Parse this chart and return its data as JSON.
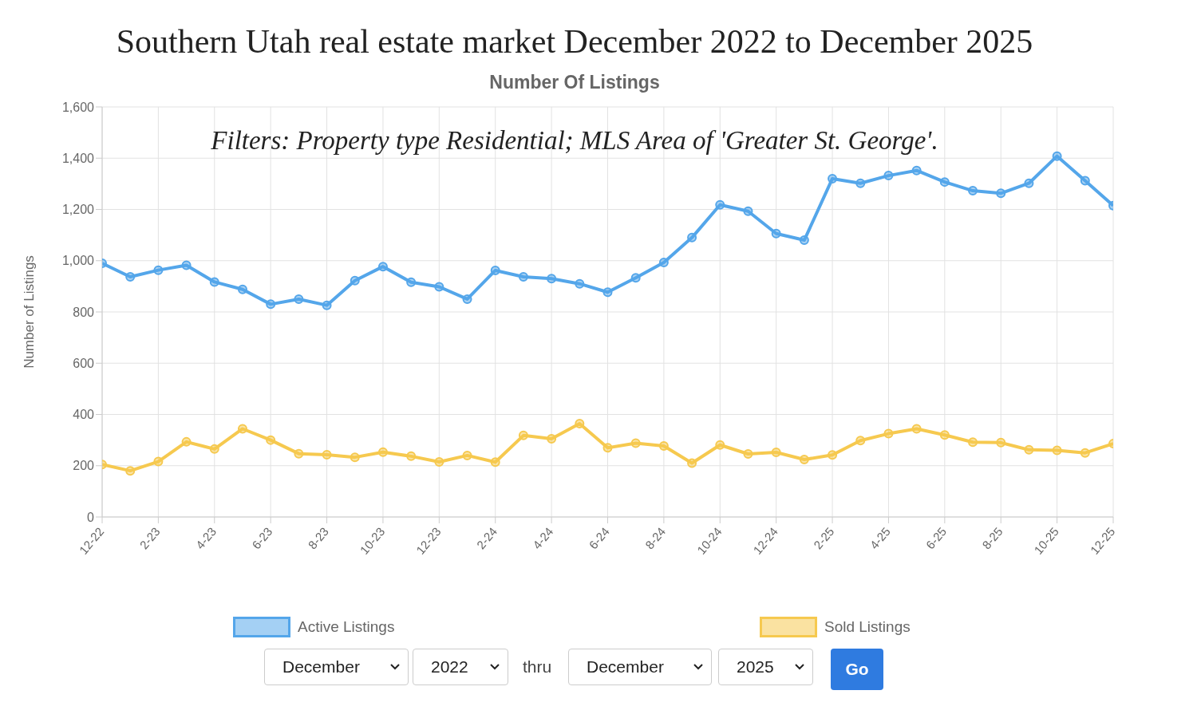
{
  "chart_data": {
    "type": "line",
    "title": "Southern Utah real estate market December 2022 to December 2025",
    "subtitle": "Number Of Listings",
    "ylabel": "Number of Listings",
    "annotations": [
      "Filters: Property type Residential; MLS Area of 'Greater St. George'.",
      "December",
      "2022",
      "thru",
      "December",
      "2025",
      "Go"
    ],
    "categories": [
      "12-22",
      null,
      "2-23",
      null,
      "4-23",
      null,
      "6-23",
      null,
      "8-23",
      null,
      "10-23",
      null,
      "12-23",
      null,
      "2-24",
      null,
      "4-24",
      null,
      "6-24",
      null,
      "8-24",
      null,
      "10-24",
      null,
      "12-24",
      null,
      "2-25",
      null,
      "4-25",
      null,
      "6-25",
      null,
      "8-25",
      null,
      "10-25",
      null,
      "12-25"
    ],
    "series": [
      {
        "name": "Active Listings",
        "color": "#54a6ea",
        "values": [
          990,
          937,
          963,
          982,
          917,
          888,
          830,
          850,
          826,
          922,
          977,
          916,
          898,
          850,
          962,
          937,
          930,
          910,
          877,
          933,
          993,
          1090,
          1218,
          1193,
          1106,
          1080,
          1320,
          1302,
          1332,
          1352,
          1307,
          1273,
          1263,
          1302,
          1408,
          1312,
          1215
        ]
      },
      {
        "name": "Sold Listings",
        "color": "#f6c94f",
        "values": [
          205,
          180,
          216,
          293,
          265,
          344,
          300,
          247,
          243,
          233,
          253,
          237,
          215,
          240,
          214,
          318,
          305,
          364,
          270,
          288,
          277,
          210,
          281,
          246,
          252,
          224,
          242,
          298,
          325,
          344,
          320,
          292,
          290,
          262,
          260,
          250,
          286
        ]
      }
    ],
    "ylim": [
      0,
      1600
    ],
    "yticks": [
      0,
      200,
      400,
      600,
      800,
      {
        "value": 1000,
        "label": "1,000"
      },
      {
        "value": 1200,
        "label": "1,200"
      },
      {
        "value": 1400,
        "label": "1,400"
      },
      {
        "value": 1600,
        "label": "1,600"
      }
    ],
    "grid": true,
    "legend": "bottom",
    "marker": "circle",
    "line_style": "solid"
  }
}
